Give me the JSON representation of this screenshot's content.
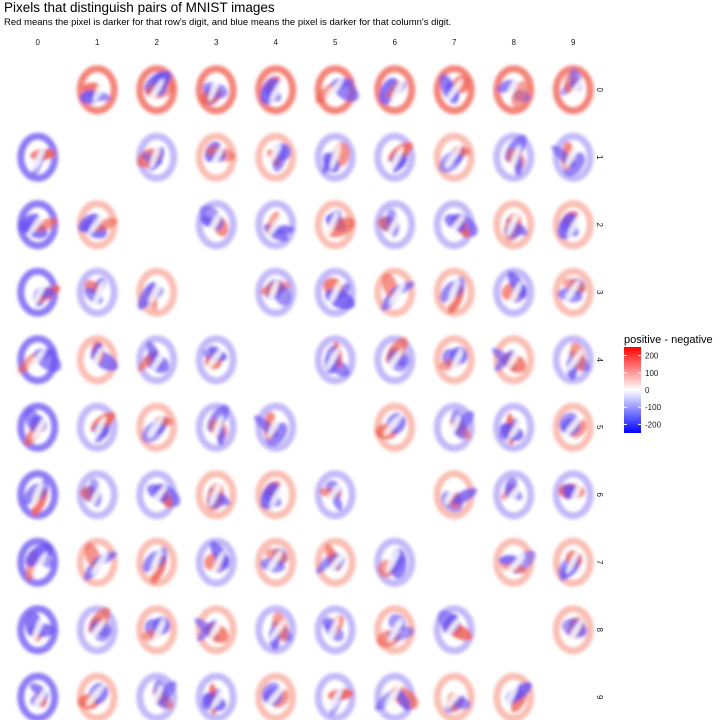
{
  "chart_data": {
    "type": "heatmap",
    "title": "Pixels that distinguish pairs of MNIST images",
    "subtitle": "Red means the pixel is darker for that row's digit, and blue means the pixel is darker for that column's digit.",
    "columns": [
      "0",
      "1",
      "2",
      "3",
      "4",
      "5",
      "6",
      "7",
      "8",
      "9"
    ],
    "rows": [
      "0",
      "1",
      "2",
      "3",
      "4",
      "5",
      "6",
      "7",
      "8",
      "9"
    ],
    "diagonal_empty": true,
    "legend": {
      "title": "positive - negative",
      "ticks": [
        200,
        100,
        0,
        -100,
        -200
      ],
      "tick_labels": [
        "200",
        "100",
        "0",
        "-100",
        "-200"
      ],
      "range": [
        -250,
        250
      ],
      "colors": {
        "low": "#0000ff",
        "mid": "#ffffff",
        "high": "#ff0000"
      },
      "placement": "right"
    }
  }
}
